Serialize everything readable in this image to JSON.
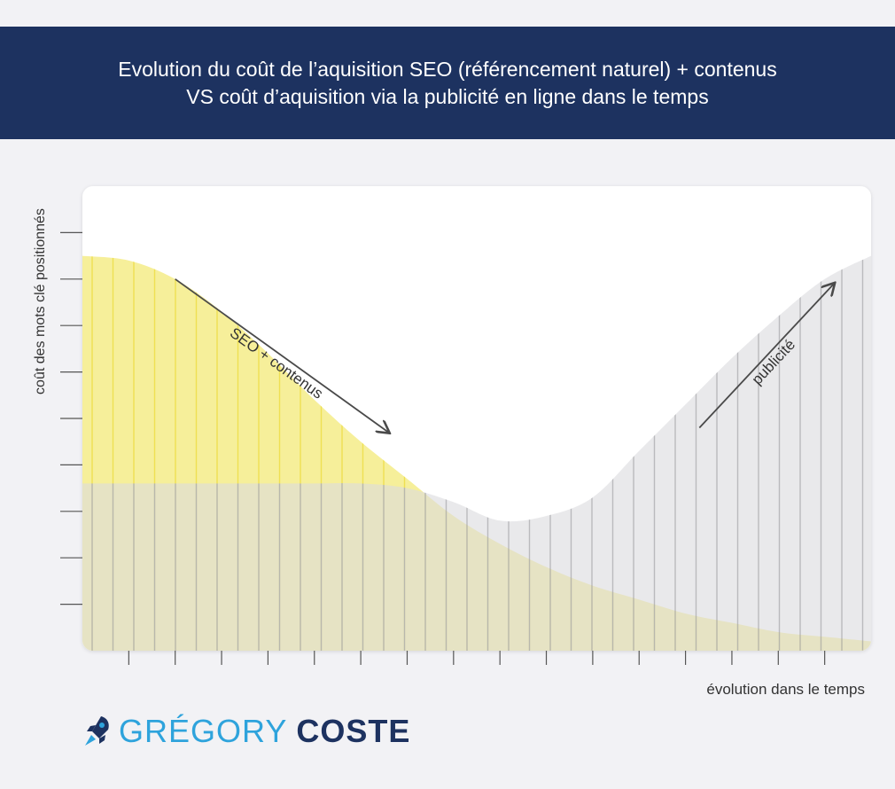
{
  "header": {
    "title_line1": "Evolution du coût de l’aquisition SEO (référencement naturel) + contenus",
    "title_line2": "VS coût d’aquisition via la publicité en ligne dans le temps"
  },
  "chart_data": {
    "type": "area",
    "title": "Evolution du coût de l’aquisition SEO (référencement naturel) + contenus VS coût d’aquisition via la publicité en ligne dans le temps",
    "xlabel": "évolution dans le temps",
    "ylabel": "coût des mots clé positionnés",
    "ylim": [
      0,
      10
    ],
    "xlim": [
      0,
      17
    ],
    "grid": false,
    "series": [
      {
        "name": "SEO + contenus",
        "color": "#f6ef9a",
        "stripe_color": "#eede4a",
        "x": [
          0,
          1,
          2,
          3,
          4,
          5,
          6,
          7,
          8,
          9,
          10,
          11,
          12,
          13,
          14,
          15,
          16,
          17
        ],
        "values": [
          8.5,
          8.4,
          8.0,
          7.3,
          6.4,
          5.4,
          4.5,
          3.7,
          2.9,
          2.3,
          1.8,
          1.4,
          1.1,
          0.8,
          0.6,
          0.4,
          0.3,
          0.2
        ]
      },
      {
        "name": "publicité",
        "color": "#dcdcdf",
        "stripe_color": "#aaaaae",
        "x": [
          0,
          1,
          2,
          3,
          4,
          5,
          6,
          7,
          8,
          9,
          10,
          11,
          12,
          13,
          14,
          15,
          16,
          17
        ],
        "values": [
          3.6,
          3.6,
          3.6,
          3.6,
          3.6,
          3.6,
          3.6,
          3.5,
          3.2,
          2.8,
          2.9,
          3.3,
          4.3,
          5.3,
          6.3,
          7.2,
          8.0,
          8.5
        ]
      }
    ],
    "annotations": [
      {
        "text": "SEO + contenus",
        "arrow": "down-right",
        "x_from": 2,
        "y_from": 8.0,
        "x_to": 6.6,
        "y_to": 4.7
      },
      {
        "text": "publicité",
        "arrow": "up-right",
        "x_from": 13.3,
        "y_from": 4.8,
        "x_to": 16.2,
        "y_to": 7.9
      }
    ]
  },
  "brand": {
    "first_name": "GRÉGORY",
    "last_name": "COSTE",
    "logo_icon": "rocket-icon"
  }
}
